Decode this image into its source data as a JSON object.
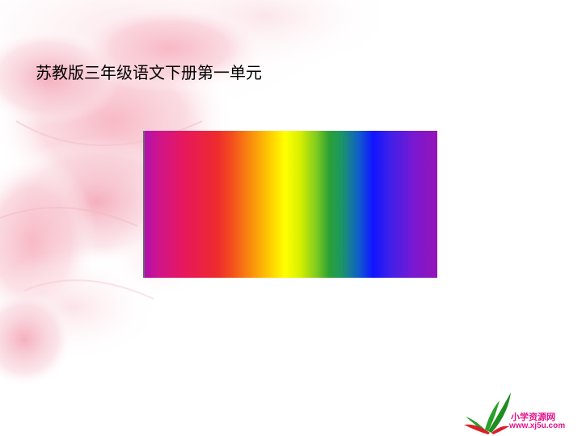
{
  "slide": {
    "title": "苏教版三年级语文下册第一单元"
  },
  "spectrum": {
    "colors": [
      "#b010b0",
      "#e8185a",
      "#ee2c2c",
      "#fb9e0a",
      "#ffff00",
      "#2ca034",
      "#1014ff",
      "#9414b8"
    ]
  },
  "logo": {
    "name": "小学资源网",
    "url": "www.xj5u.com",
    "colors": {
      "text": "#e0148c",
      "leaf_green": "#2aa02a",
      "leaf_red": "#d8202a"
    }
  }
}
